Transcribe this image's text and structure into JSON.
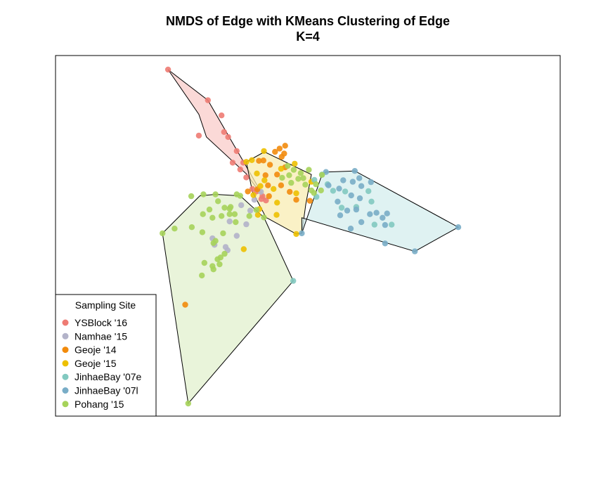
{
  "chart_data": {
    "type": "scatter",
    "title": "NMDS of Edge with KMeans Clustering of Edge",
    "subtitle": "K=4",
    "xlabel": "",
    "ylabel": "",
    "grid": false,
    "xlim": [
      0,
      100
    ],
    "ylim": [
      0,
      100
    ],
    "legend": {
      "title": "Sampling Site",
      "placement": "bottom-left",
      "entries": [
        {
          "label": "YSBlock '16",
          "color": "#EE7B73"
        },
        {
          "label": "Namhae '15",
          "color": "#B3B3C9"
        },
        {
          "label": "Geoje '14",
          "color": "#F28B0C"
        },
        {
          "label": "Geoje '15",
          "color": "#EDC000"
        },
        {
          "label": "JinhaeBay '07e",
          "color": "#82C9C0"
        },
        {
          "label": "JinhaeBay '07l",
          "color": "#79ADC7"
        },
        {
          "label": "Pohang '15",
          "color": "#A6D35A"
        }
      ]
    },
    "hulls": [
      {
        "cluster": 1,
        "fill": "#F9CCCA",
        "points": [
          [
            22.3,
            96.1
          ],
          [
            30.2,
            87.6
          ],
          [
            41.7,
            59.8
          ],
          [
            37.8,
            67.2
          ],
          [
            29.9,
            77.4
          ],
          [
            28.4,
            83.7
          ]
        ]
      },
      {
        "cluster": 2,
        "fill": "#F8ECB3",
        "points": [
          [
            37.8,
            70.5
          ],
          [
            41.4,
            73.3
          ],
          [
            50.7,
            67.0
          ],
          [
            49.6,
            58.8
          ],
          [
            48.8,
            50.7
          ],
          [
            47.7,
            50.5
          ],
          [
            41.7,
            55.1
          ],
          [
            39.0,
            62.3
          ]
        ]
      },
      {
        "cluster": 3,
        "fill": "#D4EDED",
        "points": [
          [
            48.8,
            50.7
          ],
          [
            52.8,
            67.0
          ],
          [
            53.6,
            67.7
          ],
          [
            59.3,
            68.0
          ],
          [
            79.8,
            52.4
          ],
          [
            71.2,
            45.7
          ],
          [
            48.8,
            55.0
          ]
        ]
      },
      {
        "cluster": 4,
        "fill": "#E1F0CE",
        "points": [
          [
            21.2,
            50.7
          ],
          [
            28.6,
            61.1
          ],
          [
            31.7,
            61.5
          ],
          [
            36.6,
            61.1
          ],
          [
            41.3,
            55.1
          ],
          [
            47.1,
            37.5
          ],
          [
            26.3,
            3.5
          ]
        ]
      }
    ],
    "series": [
      {
        "name": "YSBlock '16",
        "color": "#EE7B73",
        "points": [
          [
            22.3,
            96.1
          ],
          [
            30.2,
            87.6
          ],
          [
            32.9,
            83.4
          ],
          [
            33.4,
            78.8
          ],
          [
            34.2,
            77.4
          ],
          [
            28.4,
            77.8
          ],
          [
            35.9,
            73.5
          ],
          [
            35.1,
            70.3
          ],
          [
            36.6,
            68.4
          ],
          [
            37.8,
            66.2
          ],
          [
            37.2,
            70.3
          ],
          [
            39.0,
            63.0
          ],
          [
            39.8,
            62.3
          ],
          [
            41.0,
            61.0
          ],
          [
            41.7,
            59.8
          ],
          [
            40.8,
            60.2
          ]
        ]
      },
      {
        "name": "Namhae '15",
        "color": "#B3B3C9",
        "points": [
          [
            40.7,
            62.2
          ],
          [
            39.4,
            60.0
          ],
          [
            36.8,
            58.5
          ],
          [
            38.6,
            57.0
          ],
          [
            34.5,
            54.0
          ],
          [
            37.8,
            53.2
          ],
          [
            35.9,
            50.0
          ],
          [
            31.1,
            49.3
          ],
          [
            31.5,
            47.5
          ],
          [
            34.1,
            46.0
          ],
          [
            33.7,
            46.9
          ]
        ]
      },
      {
        "name": "Geoje '14",
        "color": "#F28B0C",
        "points": [
          [
            44.4,
            74.2
          ],
          [
            45.5,
            75.0
          ],
          [
            45.3,
            72.8
          ],
          [
            44.8,
            71.9
          ],
          [
            43.5,
            73.3
          ],
          [
            41.2,
            70.9
          ],
          [
            40.3,
            70.8
          ],
          [
            42.5,
            69.7
          ],
          [
            45.5,
            69.0
          ],
          [
            43.9,
            67.0
          ],
          [
            41.6,
            66.8
          ],
          [
            42.1,
            64.0
          ],
          [
            44.7,
            64.0
          ],
          [
            46.4,
            62.2
          ],
          [
            38.1,
            62.3
          ],
          [
            40.0,
            62.9
          ],
          [
            42.3,
            61.0
          ],
          [
            50.4,
            59.7
          ],
          [
            47.7,
            60.0
          ],
          [
            25.7,
            30.9
          ]
        ]
      },
      {
        "name": "Geoje '15",
        "color": "#EDC000",
        "points": [
          [
            37.8,
            70.5
          ],
          [
            41.3,
            73.5
          ],
          [
            38.9,
            71.0
          ],
          [
            47.4,
            70.0
          ],
          [
            44.7,
            68.6
          ],
          [
            39.9,
            67.3
          ],
          [
            41.4,
            65.4
          ],
          [
            40.6,
            63.8
          ],
          [
            43.2,
            63.0
          ],
          [
            39.2,
            61.3
          ],
          [
            47.7,
            61.8
          ],
          [
            50.7,
            65.0
          ],
          [
            43.8,
            55.8
          ],
          [
            40.1,
            55.8
          ],
          [
            43.9,
            59.2
          ],
          [
            47.7,
            50.5
          ],
          [
            37.3,
            46.3
          ],
          [
            40.4,
            57.4
          ]
        ]
      },
      {
        "name": "JinhaeBay '07e",
        "color": "#82C9C0",
        "points": [
          [
            52.8,
            67.0
          ],
          [
            51.3,
            65.5
          ],
          [
            53.9,
            64.3
          ],
          [
            55.0,
            62.5
          ],
          [
            51.7,
            60.8
          ],
          [
            57.4,
            62.3
          ],
          [
            62.0,
            62.4
          ],
          [
            62.6,
            59.5
          ],
          [
            56.7,
            57.8
          ],
          [
            59.6,
            58.0
          ],
          [
            66.6,
            53.1
          ],
          [
            63.2,
            53.1
          ],
          [
            47.1,
            37.5
          ]
        ]
      },
      {
        "name": "JinhaeBay '07l",
        "color": "#79ADC7",
        "points": [
          [
            53.6,
            67.7
          ],
          [
            59.3,
            68.0
          ],
          [
            60.2,
            66.0
          ],
          [
            58.9,
            65.0
          ],
          [
            54.1,
            64.0
          ],
          [
            57.0,
            65.4
          ],
          [
            60.6,
            63.8
          ],
          [
            62.5,
            64.9
          ],
          [
            56.2,
            63.1
          ],
          [
            60.3,
            60.4
          ],
          [
            58.6,
            61.2
          ],
          [
            55.9,
            59.5
          ],
          [
            57.8,
            57.0
          ],
          [
            63.6,
            56.4
          ],
          [
            65.7,
            56.2
          ],
          [
            64.8,
            55.0
          ],
          [
            56.4,
            55.7
          ],
          [
            59.6,
            57.3
          ],
          [
            62.3,
            56.0
          ],
          [
            65.3,
            53.0
          ],
          [
            60.6,
            53.8
          ],
          [
            58.5,
            52.0
          ],
          [
            48.8,
            50.7
          ],
          [
            79.8,
            52.4
          ],
          [
            71.2,
            45.7
          ],
          [
            65.3,
            47.9
          ]
        ]
      },
      {
        "name": "Pohang '15",
        "color": "#A6D35A",
        "points": [
          [
            26.9,
            61.0
          ],
          [
            29.3,
            61.5
          ],
          [
            31.7,
            61.5
          ],
          [
            32.2,
            59.6
          ],
          [
            36.6,
            61.1
          ],
          [
            34.7,
            58.0
          ],
          [
            33.5,
            57.8
          ],
          [
            35.9,
            61.5
          ],
          [
            32.9,
            55.5
          ],
          [
            34.5,
            56.0
          ],
          [
            35.7,
            53.8
          ],
          [
            31.1,
            55.0
          ],
          [
            29.2,
            56.0
          ],
          [
            30.5,
            57.3
          ],
          [
            33.2,
            50.7
          ],
          [
            31.7,
            48.6
          ],
          [
            32.7,
            44.0
          ],
          [
            33.5,
            45.0
          ],
          [
            31.3,
            48.0
          ],
          [
            32.1,
            43.5
          ],
          [
            31.1,
            41.6
          ],
          [
            29.1,
            51.0
          ],
          [
            29.5,
            42.5
          ],
          [
            29.0,
            39.0
          ],
          [
            27.0,
            52.4
          ],
          [
            23.6,
            52.0
          ],
          [
            21.2,
            50.7
          ],
          [
            34.5,
            57.5
          ],
          [
            35.5,
            56.0
          ],
          [
            38.4,
            55.5
          ],
          [
            39.8,
            57.2
          ],
          [
            41.3,
            55.1
          ],
          [
            26.3,
            3.5
          ],
          [
            31.3,
            40.7
          ],
          [
            32.5,
            42.1
          ],
          [
            51.6,
            64.3
          ],
          [
            49.1,
            66.0
          ],
          [
            48.6,
            67.4
          ],
          [
            50.2,
            68.3
          ],
          [
            52.8,
            66.9
          ],
          [
            46.3,
            66.8
          ],
          [
            47.2,
            68.3
          ],
          [
            46.0,
            69.4
          ],
          [
            48.1,
            65.8
          ],
          [
            49.5,
            64.2
          ],
          [
            51.2,
            61.9
          ],
          [
            52.6,
            62.6
          ],
          [
            46.7,
            64.7
          ],
          [
            44.9,
            66.1
          ],
          [
            50.7,
            62.6
          ]
        ]
      }
    ]
  }
}
